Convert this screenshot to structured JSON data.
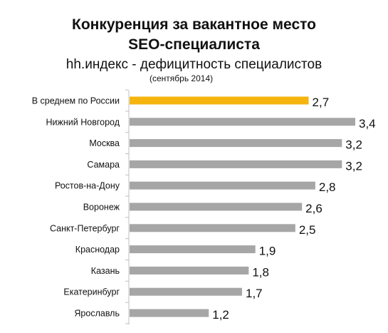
{
  "header": {
    "title_line1": "Конкуренция за вакантное место",
    "title_line2": "SEO-специалиста",
    "subtitle": "hh.индекс - дефицитность специалистов",
    "period_note": "(сентябрь 2014)"
  },
  "colors": {
    "highlight": "#F5B50E",
    "bar": "#A6A6A6",
    "axis": "#BFBFBF"
  },
  "chart_data": {
    "type": "bar",
    "orientation": "horizontal",
    "categories": [
      "В среднем по России",
      "Нижний Новгород",
      "Москва",
      "Самара",
      "Ростов-на-Дону",
      "Воронеж",
      "Санкт-Петербург",
      "Краснодар",
      "Казань",
      "Екатеринбург",
      "Ярославль"
    ],
    "values": [
      2.7,
      3.4,
      3.2,
      3.2,
      2.8,
      2.6,
      2.5,
      1.9,
      1.8,
      1.7,
      1.2
    ],
    "value_labels": [
      "2,7",
      "3,4",
      "3,2",
      "3,2",
      "2,8",
      "2,6",
      "2,5",
      "1,9",
      "1,8",
      "1,7",
      "1,2"
    ],
    "highlighted_category": "В среднем по России",
    "title": "Конкуренция за вакантное место SEO-специалиста",
    "xlim": [
      0,
      3.4
    ],
    "grid": false,
    "legend": "none"
  }
}
